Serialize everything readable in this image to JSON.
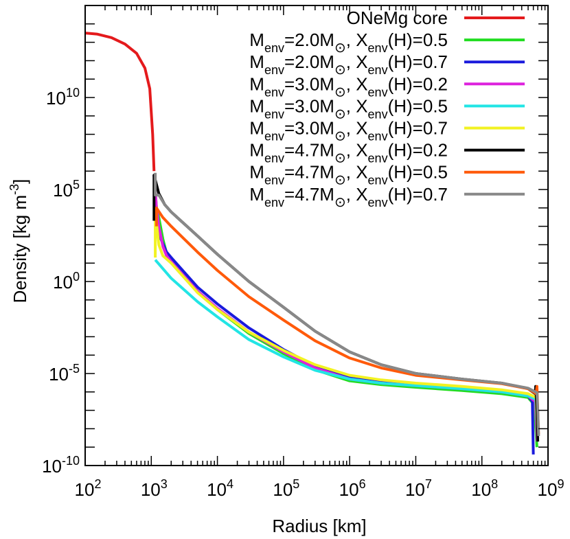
{
  "chart_data": {
    "type": "line",
    "title": "",
    "xlabel": "Radius [km]",
    "ylabel_base": "Density [kg m",
    "ylabel_exp": "-3",
    "ylabel_close": "]",
    "xscale": "log",
    "yscale": "log",
    "xlim": [
      100,
      1000000000
    ],
    "ylim": [
      1e-10,
      1000000000000000.0
    ],
    "grid": false,
    "legend_position": "top-right",
    "x_ticks": [
      {
        "base": "10",
        "exp": "2"
      },
      {
        "base": "10",
        "exp": "3"
      },
      {
        "base": "10",
        "exp": "4"
      },
      {
        "base": "10",
        "exp": "5"
      },
      {
        "base": "10",
        "exp": "6"
      },
      {
        "base": "10",
        "exp": "7"
      },
      {
        "base": "10",
        "exp": "8"
      },
      {
        "base": "10",
        "exp": "9"
      }
    ],
    "y_ticks": [
      {
        "base": "10",
        "exp": "-10"
      },
      {
        "base": "10",
        "exp": "-5"
      },
      {
        "base": "10",
        "exp": "0"
      },
      {
        "base": "10",
        "exp": "5"
      },
      {
        "base": "10",
        "exp": "10"
      }
    ],
    "series": [
      {
        "legend": "ONeMg core",
        "color": "#e41a1c",
        "points": [
          [
            100,
            32000000000000.0
          ],
          [
            150,
            28000000000000.0
          ],
          [
            250,
            18000000000000.0
          ],
          [
            400,
            8000000000000.0
          ],
          [
            600,
            2500000000000.0
          ],
          [
            800,
            400000000000.0
          ],
          [
            950,
            30000000000.0
          ],
          [
            1050,
            100000000.0
          ],
          [
            1100,
            1000000.0
          ]
        ]
      },
      {
        "legend": "M=2.0M, X(H)=0.5",
        "env_mass": "2.0",
        "env_h": "0.5",
        "color": "#22dd22",
        "points": [
          [
            1100,
            600000.0
          ],
          [
            1200,
            10000.0
          ],
          [
            1300,
            3000.0
          ],
          [
            1500,
            200
          ],
          [
            1700,
            35
          ],
          [
            2000,
            15
          ],
          [
            5000,
            0.3
          ],
          [
            10000,
            0.03
          ],
          [
            30000,
            0.0015
          ],
          [
            100000,
            0.00012
          ],
          [
            300000,
            1.6e-05
          ],
          [
            1000000,
            4e-06
          ],
          [
            3000000,
            2.5e-06
          ],
          [
            10000000,
            1.8e-06
          ],
          [
            50000000,
            1.2e-06
          ],
          [
            200000000,
            8e-07
          ],
          [
            500000000,
            5e-07
          ],
          [
            620000000,
            2e-07
          ],
          [
            680000000,
            1e-09
          ]
        ]
      },
      {
        "legend": "M=2.0M, X(H)=0.7",
        "env_mass": "2.0",
        "env_h": "0.7",
        "color": "#1a1adc",
        "points": [
          [
            1100,
            600000.0
          ],
          [
            1200,
            2000.0
          ],
          [
            1400,
            200
          ],
          [
            1700,
            40
          ],
          [
            2000,
            20
          ],
          [
            5000,
            0.5
          ],
          [
            10000,
            0.06
          ],
          [
            30000,
            0.003
          ],
          [
            100000,
            0.0002
          ],
          [
            300000,
            2.5e-05
          ],
          [
            1000000,
            6e-06
          ],
          [
            3000000,
            3.5e-06
          ],
          [
            10000000,
            2.4e-06
          ],
          [
            50000000,
            1.5e-06
          ],
          [
            200000000,
            1e-06
          ],
          [
            500000000,
            6e-07
          ],
          [
            580000000,
            3e-07
          ],
          [
            600000000,
            4e-10
          ]
        ]
      },
      {
        "legend": "M=3.0M, X(H)=0.2",
        "env_mass": "3.0",
        "env_h": "0.2",
        "color": "#dd22dd",
        "points": [
          [
            1100,
            600000.0
          ],
          [
            1200,
            10000.0
          ],
          [
            1300,
            1000.0
          ],
          [
            1500,
            80
          ],
          [
            1700,
            25
          ],
          [
            2000,
            12
          ],
          [
            5000,
            0.3
          ],
          [
            10000,
            0.035
          ],
          [
            30000,
            0.0018
          ],
          [
            100000,
            0.00015
          ],
          [
            300000,
            2e-05
          ],
          [
            1000000,
            5e-06
          ],
          [
            3000000,
            3e-06
          ],
          [
            10000000,
            2.2e-06
          ],
          [
            50000000,
            1.5e-06
          ],
          [
            200000000,
            1e-06
          ],
          [
            500000000,
            6e-07
          ],
          [
            640000000,
            3e-07
          ],
          [
            690000000,
            2e-09
          ]
        ]
      },
      {
        "legend": "M=3.0M, X(H)=0.5",
        "env_mass": "3.0",
        "env_h": "0.5",
        "color": "#22e5e5",
        "points": [
          [
            1150,
            15
          ],
          [
            1500,
            5
          ],
          [
            2000,
            1.5
          ],
          [
            5000,
            0.08
          ],
          [
            10000,
            0.012
          ],
          [
            30000,
            0.0007
          ],
          [
            100000,
            8e-05
          ],
          [
            300000,
            1.5e-05
          ],
          [
            1000000,
            5e-06
          ],
          [
            3000000,
            3e-06
          ],
          [
            10000000,
            2.2e-06
          ],
          [
            50000000,
            1.5e-06
          ],
          [
            200000000,
            1e-06
          ],
          [
            500000000,
            6e-07
          ],
          [
            650000000,
            4e-07
          ],
          [
            700000000,
            3e-09
          ]
        ]
      },
      {
        "legend": "M=3.0M, X(H)=0.7",
        "env_mass": "3.0",
        "env_h": "0.7",
        "color": "#f2f222",
        "points": [
          [
            1150,
            20
          ],
          [
            1150,
            6000.0
          ],
          [
            1300,
            100
          ],
          [
            1500,
            25
          ],
          [
            2000,
            10
          ],
          [
            5000,
            0.25
          ],
          [
            10000,
            0.03
          ],
          [
            30000,
            0.0018
          ],
          [
            100000,
            0.00018
          ],
          [
            300000,
            3e-05
          ],
          [
            1000000,
            8e-06
          ],
          [
            3000000,
            4.5e-06
          ],
          [
            10000000,
            3e-06
          ],
          [
            50000000,
            2e-06
          ],
          [
            200000000,
            1.3e-06
          ],
          [
            500000000,
            8e-07
          ],
          [
            660000000,
            5e-07
          ],
          [
            700000000,
            3e-09
          ]
        ]
      },
      {
        "legend": "M=4.7M, X(H)=0.2",
        "env_mass": "4.7",
        "env_h": "0.2",
        "color": "#000000",
        "points": [
          [
            1100,
            2000.0
          ],
          [
            1100,
            600000.0
          ],
          [
            1300,
            60000.0
          ],
          [
            1600,
            15000.0
          ],
          [
            2000,
            6000.0
          ],
          [
            5000,
            300
          ],
          [
            10000,
            30
          ],
          [
            30000,
            1
          ],
          [
            100000,
            0.04
          ],
          [
            300000,
            0.002
          ],
          [
            1000000,
            0.00015
          ],
          [
            3000000,
            3e-05
          ],
          [
            10000000,
            1e-05
          ],
          [
            50000000,
            5e-06
          ],
          [
            200000000,
            3e-06
          ],
          [
            500000000,
            1.5e-06
          ],
          [
            640000000,
            8e-07
          ],
          [
            650000000,
            2e-06
          ],
          [
            680000000,
            1e-07
          ],
          [
            700000000,
            2e-09
          ]
        ]
      },
      {
        "legend": "M=4.7M, X(H)=0.5",
        "env_mass": "4.7",
        "env_h": "0.5",
        "color": "#ff5a0a",
        "points": [
          [
            1200,
            1000.0
          ],
          [
            1200,
            10000.0
          ],
          [
            1500,
            3000.0
          ],
          [
            2000,
            1000.0
          ],
          [
            5000,
            40
          ],
          [
            10000,
            4
          ],
          [
            30000,
            0.15
          ],
          [
            100000,
            0.008
          ],
          [
            300000,
            0.0006
          ],
          [
            1000000,
            7e-05
          ],
          [
            3000000,
            2e-05
          ],
          [
            10000000,
            8e-06
          ],
          [
            50000000,
            4.5e-06
          ],
          [
            200000000,
            2.8e-06
          ],
          [
            500000000,
            1.5e-06
          ],
          [
            660000000,
            8e-07
          ],
          [
            680000000,
            2e-06
          ],
          [
            720000000,
            5e-09
          ]
        ]
      },
      {
        "legend": "M=4.7M, X(H)=0.7",
        "env_mass": "4.7",
        "env_h": "0.7",
        "color": "#888888",
        "points": [
          [
            1150,
            800000.0
          ],
          [
            1150,
            50000.0
          ],
          [
            1300,
            50000.0
          ],
          [
            1600,
            15000.0
          ],
          [
            2000,
            6000.0
          ],
          [
            5000,
            300
          ],
          [
            10000,
            30
          ],
          [
            30000,
            1
          ],
          [
            100000,
            0.04
          ],
          [
            300000,
            0.002
          ],
          [
            1000000,
            0.00015
          ],
          [
            3000000,
            3e-05
          ],
          [
            10000000,
            1e-05
          ],
          [
            50000000,
            5e-06
          ],
          [
            200000000,
            3e-06
          ],
          [
            500000000,
            1.6e-06
          ],
          [
            680000000,
            9e-07
          ],
          [
            700000000,
            1e-07
          ],
          [
            720000000,
            4e-09
          ]
        ]
      }
    ]
  }
}
